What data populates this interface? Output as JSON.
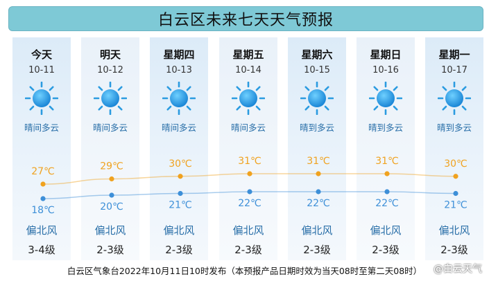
{
  "title": "白云区未来七天天气预报",
  "days": [
    {
      "day": "今天",
      "date": "10-11",
      "condition": "晴间多云",
      "high": "27℃",
      "low": "18℃",
      "wind": "偏北风",
      "level": "3-4级"
    },
    {
      "day": "明天",
      "date": "10-12",
      "condition": "晴间多云",
      "high": "29℃",
      "low": "20℃",
      "wind": "偏北风",
      "level": "2-3级"
    },
    {
      "day": "星期四",
      "date": "10-13",
      "condition": "晴间多云",
      "high": "30℃",
      "low": "21℃",
      "wind": "偏北风",
      "level": "2-3级"
    },
    {
      "day": "星期五",
      "date": "10-14",
      "condition": "晴间多云",
      "high": "31℃",
      "low": "22℃",
      "wind": "偏北风",
      "level": "2-3级"
    },
    {
      "day": "星期六",
      "date": "10-15",
      "condition": "晴到多云",
      "high": "31℃",
      "low": "22℃",
      "wind": "偏北风",
      "level": "2-3级"
    },
    {
      "day": "星期日",
      "date": "10-16",
      "condition": "晴到多云",
      "high": "31℃",
      "low": "22℃",
      "wind": "偏北风",
      "level": "2-3级"
    },
    {
      "day": "星期一",
      "date": "10-17",
      "condition": "晴到多云",
      "high": "30℃",
      "low": "21℃",
      "wind": "偏北风",
      "level": "2-3级"
    }
  ],
  "icon": "sun-icon",
  "chart_data": {
    "type": "line",
    "categories": [
      "10-11",
      "10-12",
      "10-13",
      "10-14",
      "10-15",
      "10-16",
      "10-17"
    ],
    "series": [
      {
        "values": [
          27,
          29,
          30,
          31,
          31,
          31,
          30
        ]
      },
      {
        "values": [
          18,
          20,
          21,
          22,
          22,
          22,
          21
        ]
      }
    ],
    "colors": {
      "high": "#f0a21f",
      "low": "#3d8fd8"
    }
  },
  "footer": "白云区气象台2022年10月11日10时发布（本预报产品日期时效为当天08时至第二天08时）",
  "watermark": "@白云天气"
}
